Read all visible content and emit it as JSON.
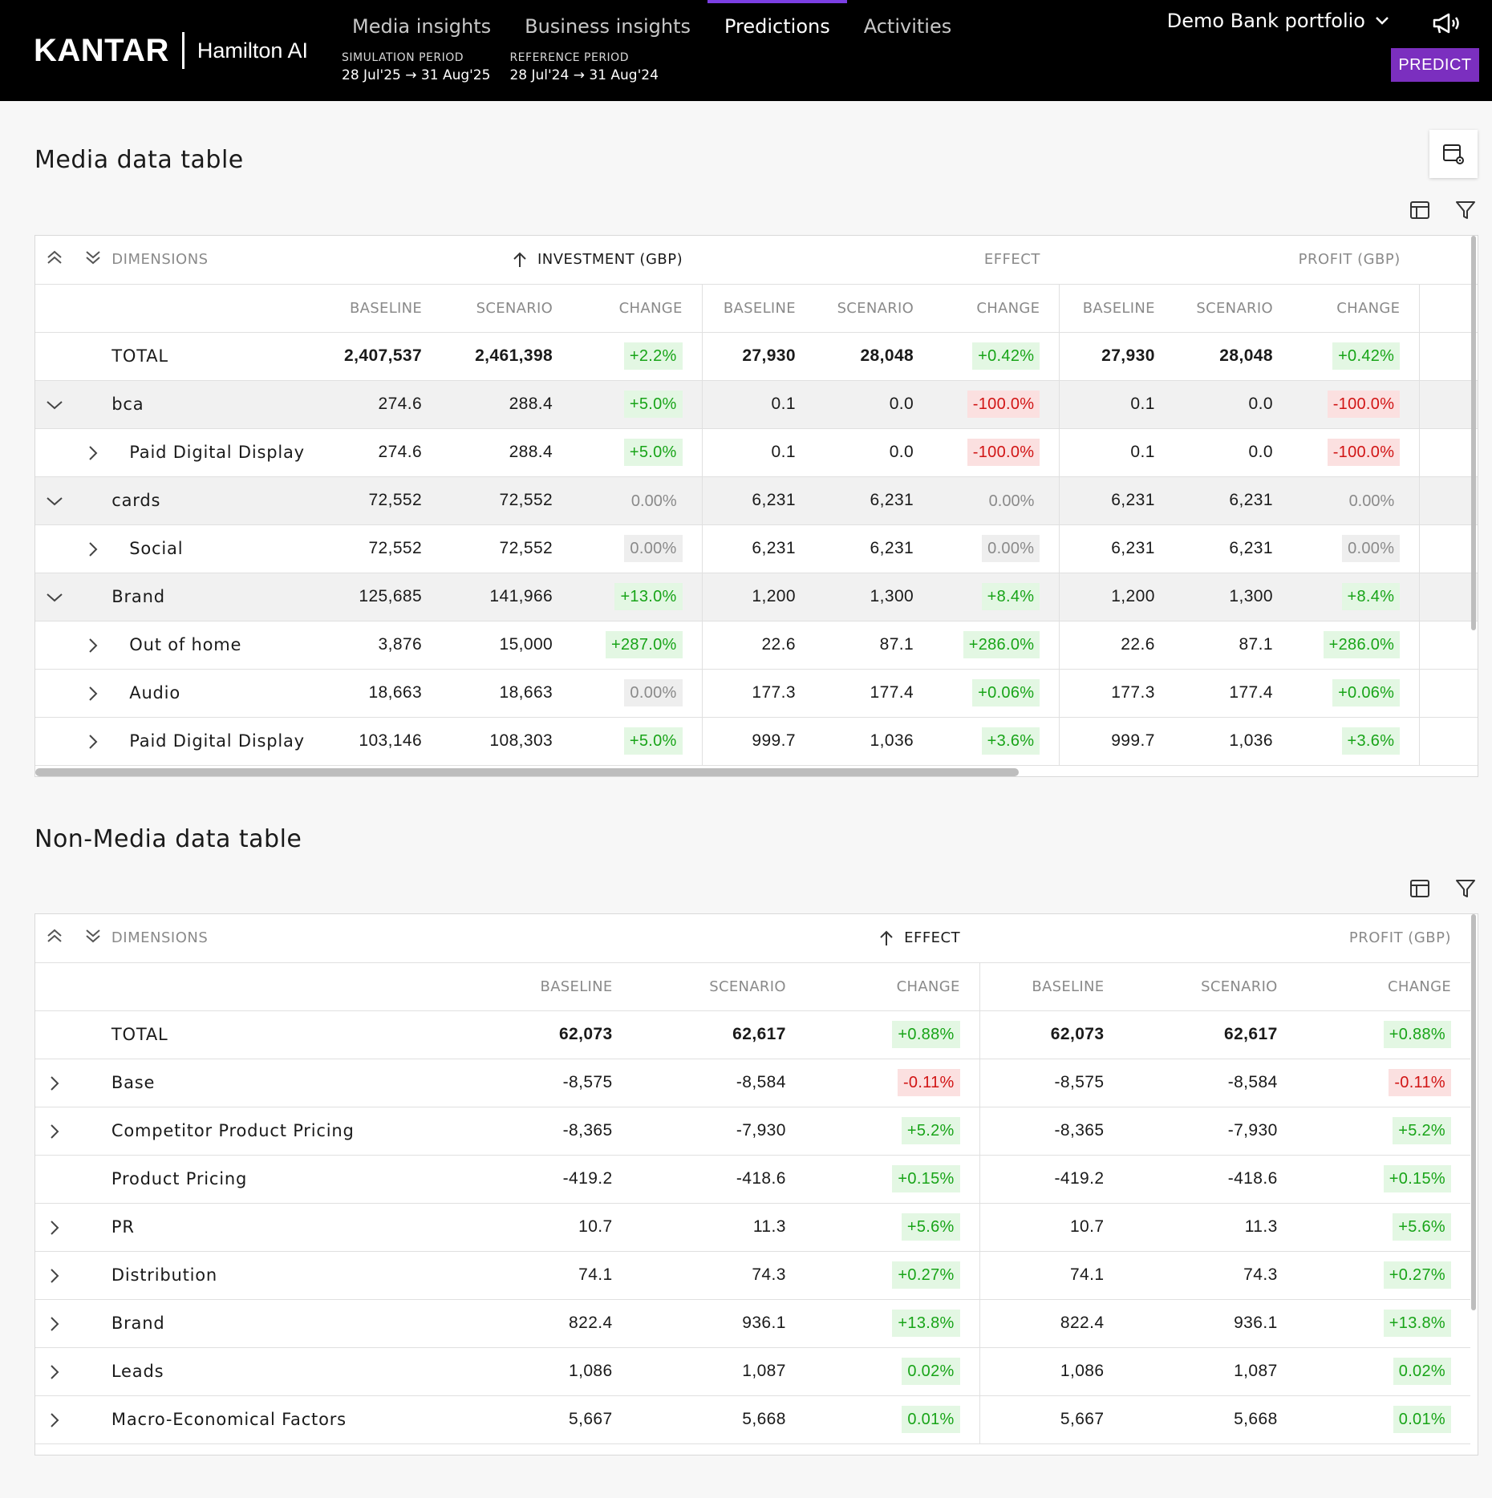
{
  "header": {
    "brand": "KANTAR",
    "product": "Hamilton AI",
    "nav": [
      "Media insights",
      "Business insights",
      "Predictions",
      "Activities"
    ],
    "active_nav": "Predictions",
    "simulation_label": "SIMULATION PERIOD",
    "simulation_value": "28 Jul'25 → 31 Aug'25",
    "reference_label": "REFERENCE PERIOD",
    "reference_value": "28 Jul'24 → 31 Aug'24",
    "portfolio": "Demo Bank portfolio",
    "predict_label": "PREDICT"
  },
  "colors": {
    "accent": "#7b2fbf",
    "nav_active": "#7b3fe4",
    "positive": "#18a418",
    "negative": "#d11414"
  },
  "icons": [
    "kantar-logo",
    "chevron-down-icon",
    "megaphone-icon",
    "table-settings-icon",
    "columns-icon",
    "filter-icon",
    "collapse-all-icon",
    "expand-all-icon",
    "sort-arrow-up-icon",
    "chevron-right-icon"
  ],
  "media": {
    "title": "Media data table",
    "dimensions_label": "DIMENSIONS",
    "groups": [
      "INVESTMENT (GBP)",
      "EFFECT",
      "PROFIT (GBP)"
    ],
    "sub_headers": [
      "BASELINE",
      "SCENARIO",
      "CHANGE"
    ],
    "rows": [
      {
        "name": "TOTAL",
        "level": "total",
        "cells": [
          "2,407,537",
          "2,461,398",
          "+2.2%",
          "27,930",
          "28,048",
          "+0.42%",
          "27,930",
          "28,048",
          "+0.42%"
        ]
      },
      {
        "name": "bca",
        "level": "group",
        "cells": [
          "274.6",
          "288.4",
          "+5.0%",
          "0.1",
          "0.0",
          "-100.0%",
          "0.1",
          "0.0",
          "-100.0%"
        ]
      },
      {
        "name": "Paid Digital Display",
        "level": "child",
        "cells": [
          "274.6",
          "288.4",
          "+5.0%",
          "0.1",
          "0.0",
          "-100.0%",
          "0.1",
          "0.0",
          "-100.0%"
        ]
      },
      {
        "name": "cards",
        "level": "group",
        "cells": [
          "72,552",
          "72,552",
          "0.00%",
          "6,231",
          "6,231",
          "0.00%",
          "6,231",
          "6,231",
          "0.00%"
        ]
      },
      {
        "name": "Social",
        "level": "child",
        "cells": [
          "72,552",
          "72,552",
          "0.00%",
          "6,231",
          "6,231",
          "0.00%",
          "6,231",
          "6,231",
          "0.00%"
        ]
      },
      {
        "name": "Brand",
        "level": "group",
        "cells": [
          "125,685",
          "141,966",
          "+13.0%",
          "1,200",
          "1,300",
          "+8.4%",
          "1,200",
          "1,300",
          "+8.4%"
        ]
      },
      {
        "name": "Out of home",
        "level": "child",
        "cells": [
          "3,876",
          "15,000",
          "+287.0%",
          "22.6",
          "87.1",
          "+286.0%",
          "22.6",
          "87.1",
          "+286.0%"
        ]
      },
      {
        "name": "Audio",
        "level": "child",
        "cells": [
          "18,663",
          "18,663",
          "0.00%",
          "177.3",
          "177.4",
          "+0.06%",
          "177.3",
          "177.4",
          "+0.06%"
        ]
      },
      {
        "name": "Paid Digital Display",
        "level": "child",
        "cells": [
          "103,146",
          "108,303",
          "+5.0%",
          "999.7",
          "1,036",
          "+3.6%",
          "999.7",
          "1,036",
          "+3.6%"
        ]
      }
    ]
  },
  "nonmedia": {
    "title": "Non-Media data table",
    "dimensions_label": "DIMENSIONS",
    "groups": [
      "EFFECT",
      "PROFIT (GBP)"
    ],
    "sub_headers": [
      "BASELINE",
      "SCENARIO",
      "CHANGE"
    ],
    "rows": [
      {
        "name": "TOTAL",
        "level": "total",
        "cells": [
          "62,073",
          "62,617",
          "+0.88%",
          "62,073",
          "62,617",
          "+0.88%"
        ]
      },
      {
        "name": "Base",
        "level": "expandable",
        "cells": [
          "-8,575",
          "-8,584",
          "-0.11%",
          "-8,575",
          "-8,584",
          "-0.11%"
        ]
      },
      {
        "name": "Competitor Product Pricing",
        "level": "expandable",
        "cells": [
          "-8,365",
          "-7,930",
          "+5.2%",
          "-8,365",
          "-7,930",
          "+5.2%"
        ]
      },
      {
        "name": "Product Pricing",
        "level": "leaf",
        "cells": [
          "-419.2",
          "-418.6",
          "+0.15%",
          "-419.2",
          "-418.6",
          "+0.15%"
        ]
      },
      {
        "name": "PR",
        "level": "expandable",
        "cells": [
          "10.7",
          "11.3",
          "+5.6%",
          "10.7",
          "11.3",
          "+5.6%"
        ]
      },
      {
        "name": "Distribution",
        "level": "expandable",
        "cells": [
          "74.1",
          "74.3",
          "+0.27%",
          "74.1",
          "74.3",
          "+0.27%"
        ]
      },
      {
        "name": "Brand",
        "level": "expandable",
        "cells": [
          "822.4",
          "936.1",
          "+13.8%",
          "822.4",
          "936.1",
          "+13.8%"
        ]
      },
      {
        "name": "Leads",
        "level": "expandable",
        "cells": [
          "1,086",
          "1,087",
          "0.02%",
          "1,086",
          "1,087",
          "0.02%"
        ]
      },
      {
        "name": "Macro-Economical Factors",
        "level": "expandable",
        "cells": [
          "5,667",
          "5,668",
          "0.01%",
          "5,667",
          "5,668",
          "0.01%"
        ]
      }
    ]
  }
}
